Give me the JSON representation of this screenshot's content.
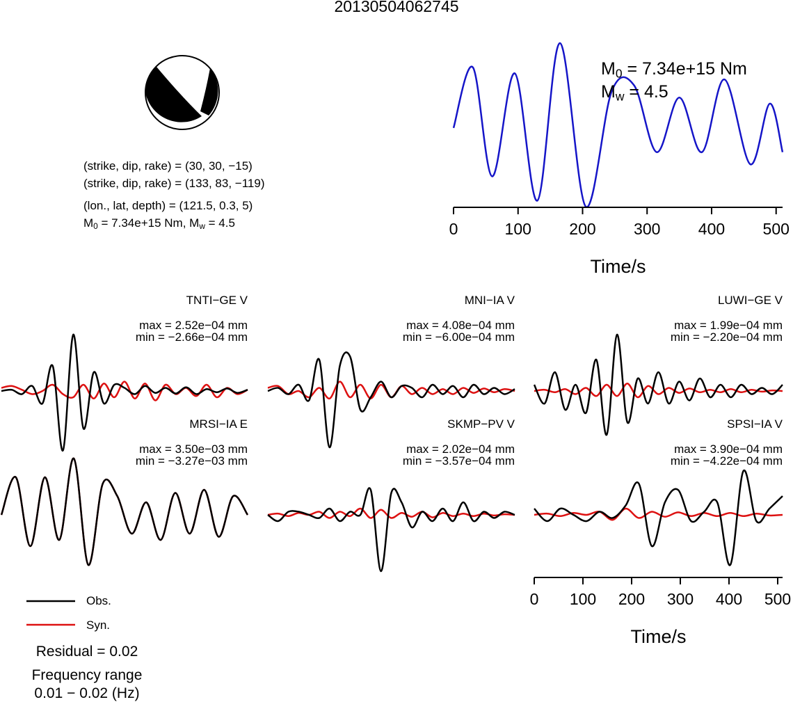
{
  "title": "20130504062745",
  "event_info": {
    "plane1": "(strike, dip, rake) = (30, 30, −15)",
    "plane2": "(strike, dip, rake) = (133, 83, −119)",
    "location": "(lon., lat, depth) = (121.5, 0.3, 5)",
    "moment_prefix": "M",
    "moment_sub": "0",
    "moment_value": " = 7.34e+15 Nm, M",
    "mag_sub": "w",
    "mag_value": " = 4.5"
  },
  "stf_labels": {
    "m0_prefix": "M",
    "m0_sub": "0",
    "m0_value": " = 7.34e+15 Nm",
    "mw_prefix": "M",
    "mw_sub": "w",
    "mw_value": " = 4.5"
  },
  "legend": {
    "obs": "Obs.",
    "syn": "Syn.",
    "residual": "Residual = 0.02",
    "freq_title": "Frequency range",
    "freq_value": "0.01 − 0.02 (Hz)"
  },
  "colors": {
    "obs": "#000000",
    "syn": "#dd1111",
    "stf": "#1515c8"
  },
  "chart_data": [
    {
      "type": "line",
      "title": "",
      "xlabel": "Time/s",
      "xlim": [
        0,
        510
      ],
      "xticks": [
        0,
        100,
        200,
        300,
        400,
        500
      ],
      "series": [
        {
          "color": "#1515c8",
          "x": [
            0,
            30,
            60,
            95,
            130,
            165,
            205,
            245,
            280,
            315,
            350,
            385,
            420,
            460,
            490,
            510
          ],
          "y": [
            0.5,
            1.0,
            0.1,
            0.95,
            -0.1,
            1.2,
            -0.15,
            0.8,
            0.85,
            0.3,
            0.75,
            0.3,
            0.9,
            0.2,
            0.7,
            0.3
          ]
        }
      ]
    },
    {
      "type": "line",
      "title": "TNTI−GE V",
      "max_label": "max = 2.52e−04 mm",
      "min_label": "min = −2.66e−04 mm",
      "series": [
        {
          "name": "Obs.",
          "color": "#000000",
          "y": [
            0,
            0.02,
            -0.05,
            0.08,
            -0.2,
            0.4,
            -0.95,
            0.9,
            -0.6,
            0.3,
            -0.2,
            0.1,
            0.05,
            -0.05,
            0.08,
            -0.03,
            0.05,
            -0.04,
            0.06,
            -0.05,
            0.03,
            -0.02,
            0.04,
            -0.03,
            0.02
          ]
        },
        {
          "name": "Syn.",
          "color": "#dd1111",
          "y": [
            0.05,
            0.08,
            0.02,
            -0.05,
            0.0,
            0.1,
            -0.05,
            -0.1,
            0.1,
            -0.12,
            0.12,
            -0.1,
            0.15,
            -0.12,
            0.12,
            -0.15,
            0.1,
            -0.05,
            0.05,
            -0.08,
            0.1,
            -0.1,
            0.05,
            -0.05,
            0.02
          ]
        }
      ]
    },
    {
      "type": "line",
      "title": "MNI−IA V",
      "max_label": "max = 4.08e−04 mm",
      "min_label": "min = −6.00e−04 mm",
      "series": [
        {
          "name": "Obs.",
          "color": "#000000",
          "y": [
            0,
            0.05,
            -0.05,
            0.1,
            -0.15,
            0.5,
            -0.9,
            0.4,
            0.55,
            -0.3,
            -0.1,
            0.15,
            -0.1,
            0.08,
            0.05,
            -0.1,
            0.1,
            -0.05,
            0.08,
            -0.1,
            0.1,
            -0.05,
            0.05,
            -0.05,
            0.03
          ]
        },
        {
          "name": "Syn.",
          "color": "#dd1111",
          "y": [
            0.05,
            0.08,
            -0.05,
            0.0,
            -0.1,
            0.05,
            -0.12,
            0.15,
            -0.1,
            0.1,
            -0.12,
            0.1,
            -0.1,
            0.08,
            -0.05,
            0.05,
            -0.05,
            0.03,
            -0.05,
            0.05,
            -0.03,
            0.04,
            -0.02,
            0.03,
            0.0
          ]
        }
      ]
    },
    {
      "type": "line",
      "title": "LUWI−GE V",
      "max_label": "max = 1.99e−04 mm",
      "min_label": "min = −2.20e−04 mm",
      "series": [
        {
          "name": "Obs.",
          "color": "#000000",
          "y": [
            0.1,
            -0.2,
            0.3,
            -0.3,
            0.1,
            -0.35,
            0.5,
            -0.7,
            0.9,
            -0.5,
            0.2,
            -0.2,
            0.3,
            -0.2,
            0.15,
            -0.15,
            0.2,
            -0.1,
            0.1,
            -0.1,
            0.1,
            -0.05,
            0.05,
            -0.05,
            0.1
          ]
        },
        {
          "name": "Syn.",
          "color": "#dd1111",
          "y": [
            0,
            0.02,
            -0.02,
            0.03,
            -0.05,
            0.05,
            -0.08,
            0.1,
            -0.08,
            0.12,
            -0.1,
            0.08,
            -0.05,
            0.05,
            -0.03,
            0.04,
            -0.02,
            0.02,
            -0.02,
            0.03,
            -0.02,
            0.02,
            -0.01,
            0.01,
            0
          ]
        }
      ]
    },
    {
      "type": "line",
      "title": "MRSI−IA E",
      "max_label": "max = 3.50e−03 mm",
      "min_label": "min = −3.27e−03 mm",
      "series": [
        {
          "name": "Obs.",
          "color": "#000000",
          "y": [
            0,
            0.6,
            -0.5,
            0.6,
            -0.4,
            0.9,
            -0.8,
            0.5,
            0.3,
            -0.3,
            0.2,
            -0.4,
            0.35,
            -0.3,
            0.4,
            -0.35,
            0.3,
            0
          ]
        },
        {
          "name": "Syn.",
          "color": "#dd1111",
          "y": [
            0,
            0.6,
            -0.5,
            0.6,
            -0.4,
            0.9,
            -0.8,
            0.5,
            0.3,
            -0.3,
            0.2,
            -0.4,
            0.35,
            -0.3,
            0.4,
            -0.35,
            0.3,
            0
          ]
        }
      ]
    },
    {
      "type": "line",
      "title": "SKMP−PV V",
      "max_label": "max = 2.02e−04 mm",
      "min_label": "min = −3.57e−04 mm",
      "series": [
        {
          "name": "Obs.",
          "color": "#000000",
          "y": [
            0,
            -0.1,
            0.05,
            0.05,
            0.0,
            -0.05,
            0.1,
            -0.1,
            0.05,
            0.0,
            0.4,
            -0.9,
            0.35,
            0.2,
            -0.2,
            0.05,
            -0.1,
            0.1,
            -0.1,
            0.2,
            -0.1,
            0.05,
            -0.05,
            0.05,
            0.0
          ]
        },
        {
          "name": "Syn.",
          "color": "#dd1111",
          "y": [
            0,
            0.02,
            -0.02,
            0.03,
            0.0,
            0.05,
            -0.05,
            0.05,
            -0.02,
            0.1,
            -0.05,
            0.08,
            -0.05,
            0.03,
            -0.03,
            0.05,
            -0.04,
            0.03,
            -0.02,
            0.02,
            -0.02,
            0.02,
            -0.01,
            0.01,
            0
          ]
        }
      ]
    },
    {
      "type": "line",
      "title": "SPSI−IA V",
      "max_label": "max = 3.90e−04 mm",
      "min_label": "min = −4.22e−04 mm",
      "xlabel": "Time/s",
      "xlim": [
        0,
        510
      ],
      "xticks": [
        0,
        100,
        200,
        300,
        400,
        500
      ],
      "series": [
        {
          "name": "Obs.",
          "color": "#000000",
          "y": [
            0.1,
            -0.1,
            0.1,
            0.0,
            -0.1,
            0.05,
            -0.05,
            0.15,
            0.5,
            -0.5,
            0.2,
            0.4,
            -0.1,
            0.05,
            0.2,
            -0.8,
            0.7,
            -0.1,
            0.1,
            0.3
          ]
        },
        {
          "name": "Syn.",
          "color": "#dd1111",
          "y": [
            0,
            0.02,
            -0.02,
            0.03,
            0.0,
            0.05,
            -0.08,
            0.1,
            -0.05,
            0.05,
            -0.03,
            0.04,
            -0.02,
            0.03,
            -0.02,
            0.03,
            -0.02,
            0.02,
            -0.01,
            0
          ]
        }
      ]
    }
  ]
}
